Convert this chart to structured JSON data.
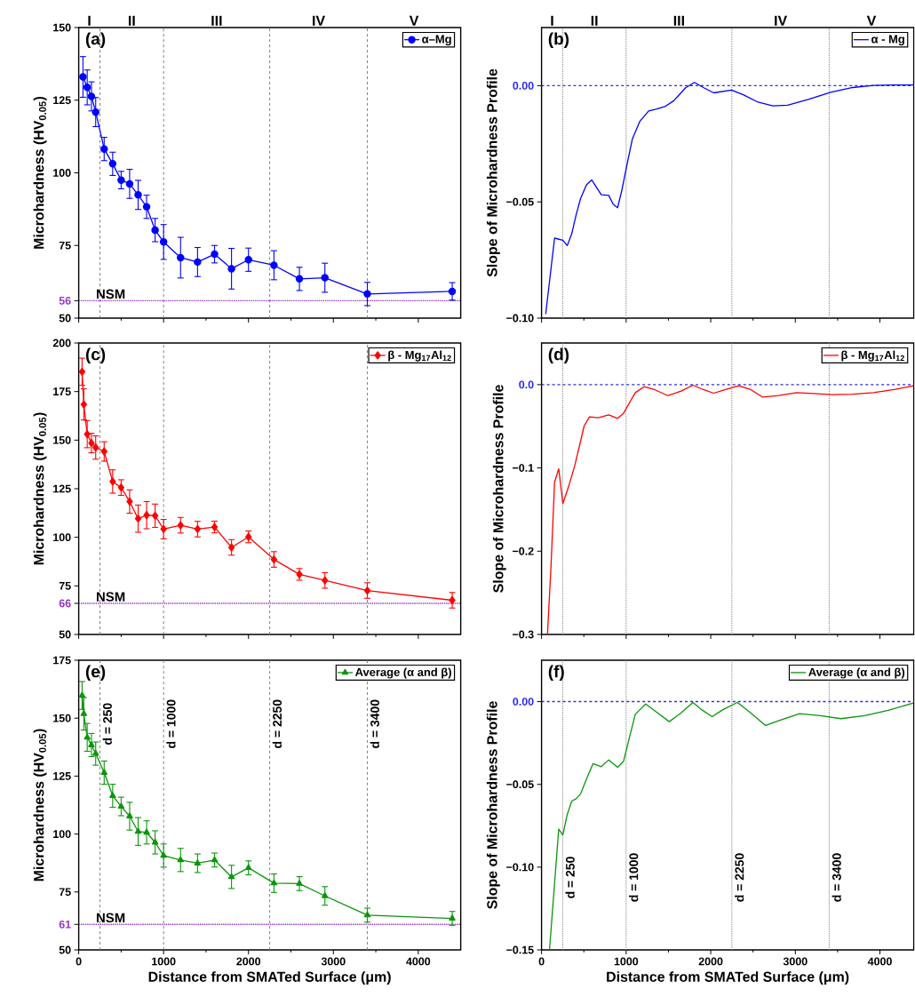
{
  "chart_data": [
    {
      "type": "line",
      "ylabel": "Microhardness (HV$_{0.05}$)",
      "annotations": [
        "(a)",
        "I",
        "II",
        "III",
        "IV",
        "V"
      ],
      "x": [
        50,
        100,
        150,
        200,
        300,
        400,
        500,
        600,
        700,
        800,
        900,
        1000,
        1200,
        1400,
        1600,
        1800,
        2000,
        2300,
        2600,
        2900,
        3400,
        4400
      ],
      "series": [
        {
          "name": "α–Mg",
          "color": "#0000ff",
          "values": [
            133,
            129.4,
            126.3,
            120.9,
            108.2,
            103.1,
            97.5,
            96.2,
            92.4,
            88.3,
            80.3,
            76.2,
            70.8,
            69.3,
            72,
            67,
            70.1,
            68.2,
            63.5,
            63.9,
            58.3,
            59.2
          ],
          "errors": [
            7,
            6,
            5,
            5,
            4,
            4,
            3,
            5,
            5,
            4,
            4,
            6,
            7,
            5,
            3,
            7,
            4,
            5,
            4,
            5,
            4,
            3
          ]
        }
      ],
      "xlim": [
        0,
        4500
      ],
      "xticks": [
        0,
        1000,
        2000,
        3000,
        4000
      ],
      "ylim": [
        50,
        150
      ],
      "yticks": [
        50,
        56,
        75,
        100,
        125,
        150
      ],
      "ref_lines": [
        {
          "axis": "x",
          "value": 250,
          "color": "#808080",
          "line_style": "dashed"
        },
        {
          "axis": "x",
          "value": 1000,
          "color": "#808080",
          "line_style": "dashed"
        },
        {
          "axis": "x",
          "value": 2250,
          "color": "#808080",
          "line_style": "dashed"
        },
        {
          "axis": "x",
          "value": 3400,
          "color": "#808080",
          "line_style": "dashed"
        },
        {
          "axis": "y",
          "value": 56,
          "label": "NSM",
          "color": "#9932cc",
          "line_style": "dotted"
        }
      ],
      "marker": "circle",
      "legend": "top right",
      "tick_labels": "y"
    },
    {
      "type": "line",
      "ylabel": "Slope of Microhardness Profile",
      "annotations": [
        "(b)",
        "I",
        "II",
        "III",
        "IV",
        "V"
      ],
      "x": [
        49,
        154,
        252,
        304,
        357,
        409,
        462,
        531,
        594,
        706,
        794,
        846,
        899,
        951,
        1007,
        1073,
        1161,
        1266,
        1353,
        1458,
        1563,
        1703,
        1808,
        1913,
        2035,
        2245,
        2385,
        2559,
        2734,
        2909,
        3154,
        3416,
        3678,
        3923,
        4168,
        4395
      ],
      "series": [
        {
          "name": "α - Mg",
          "color": "#0000ff",
          "values": [
            -0.0983,
            -0.0656,
            -0.0665,
            -0.0688,
            -0.0637,
            -0.0555,
            -0.0485,
            -0.0427,
            -0.0406,
            -0.0469,
            -0.0472,
            -0.051,
            -0.0525,
            -0.0447,
            -0.0345,
            -0.023,
            -0.0154,
            -0.0109,
            -0.0101,
            -0.009,
            -0.0065,
            -0.0009,
            0.0014,
            -0.0008,
            -0.0031,
            -0.0019,
            -0.0039,
            -0.0071,
            -0.0087,
            -0.0084,
            -0.0059,
            -0.0029,
            -0.0008,
            0.0001,
            0.0003,
            0.0003
          ]
        }
      ],
      "xlim": [
        0,
        4400
      ],
      "xticks": [
        0,
        1000,
        2000,
        3000,
        4000
      ],
      "ylim": [
        -0.1,
        0.025
      ],
      "yticks": [
        {
          "value": -0.1,
          "label": "−0.10"
        },
        {
          "value": -0.05,
          "label": "−0.05"
        },
        {
          "value": 0,
          "label": "0.00"
        }
      ],
      "ref_lines": [
        {
          "axis": "x",
          "value": 250,
          "color": "#808080",
          "line_style": "dotted"
        },
        {
          "axis": "x",
          "value": 1000,
          "color": "#808080",
          "line_style": "dotted"
        },
        {
          "axis": "x",
          "value": 2250,
          "color": "#808080",
          "line_style": "dotted"
        },
        {
          "axis": "x",
          "value": 3400,
          "color": "#808080",
          "line_style": "dotted"
        },
        {
          "axis": "y",
          "value": 0,
          "color": "#2a2aee",
          "line_style": "dashed"
        }
      ],
      "legend": "top right",
      "tick_labels": "y"
    },
    {
      "type": "line",
      "ylabel": "Microhardness (HV$_{0.05}$)",
      "annotations": [
        "(c)"
      ],
      "x": [
        40,
        60,
        100,
        150,
        200,
        300,
        400,
        500,
        600,
        700,
        800,
        900,
        1000,
        1200,
        1400,
        1600,
        1800,
        2000,
        2300,
        2600,
        2900,
        3400,
        4400
      ],
      "series": [
        {
          "name": "β - Mg$_{17}$Al$_{12}$",
          "color": "#ff0000",
          "values": [
            185.2,
            168.4,
            153.1,
            148.5,
            146.2,
            144.2,
            128.7,
            125.6,
            118.4,
            109.6,
            111.4,
            111.1,
            104.2,
            106.2,
            104.2,
            105.3,
            94.8,
            100.2,
            88.6,
            80.9,
            77.8,
            72.6,
            67.6
          ],
          "errors": [
            7,
            8,
            7,
            5,
            6,
            5,
            6,
            4,
            6,
            7,
            7,
            6,
            5,
            4,
            4,
            3,
            4,
            3,
            4,
            3,
            4,
            4,
            4
          ]
        }
      ],
      "xlim": [
        0,
        4500
      ],
      "xticks": [
        0,
        1000,
        2000,
        3000,
        4000
      ],
      "ylim": [
        50,
        200
      ],
      "yticks": [
        50,
        66,
        75,
        100,
        125,
        150,
        175,
        200
      ],
      "ref_lines": [
        {
          "axis": "x",
          "value": 250,
          "color": "#808080",
          "line_style": "dashed"
        },
        {
          "axis": "x",
          "value": 1000,
          "color": "#808080",
          "line_style": "dashed"
        },
        {
          "axis": "x",
          "value": 2250,
          "color": "#808080",
          "line_style": "dashed"
        },
        {
          "axis": "x",
          "value": 3400,
          "color": "#808080",
          "line_style": "dashed"
        },
        {
          "axis": "y",
          "value": 66,
          "label": "NSM",
          "color": "#9932cc",
          "line_style": "dotted"
        }
      ],
      "marker": "diamond",
      "legend": "top right",
      "tick_labels": "y"
    },
    {
      "type": "line",
      "ylabel": "Slope of Microhardness Profile",
      "annotations": [
        "(d)"
      ],
      "x": [
        70,
        112,
        154,
        203,
        252,
        322,
        392,
        444,
        503,
        566,
        671,
        794,
        899,
        969,
        1038,
        1108,
        1213,
        1336,
        1493,
        1650,
        1790,
        1913,
        2035,
        2175,
        2332,
        2472,
        2612,
        2804,
        3014,
        3224,
        3434,
        3678,
        3923,
        4168,
        4395
      ],
      "series": [
        {
          "name": "β - Mg$_{17}$Al$_{12}$",
          "color": "#ff0000",
          "values": [
            -0.3,
            -0.2176,
            -0.1173,
            -0.101,
            -0.1429,
            -0.1216,
            -0.0974,
            -0.0754,
            -0.0498,
            -0.0387,
            -0.0398,
            -0.0363,
            -0.0405,
            -0.0345,
            -0.022,
            -0.0096,
            -0.0025,
            -0.006,
            -0.0132,
            -0.0078,
            -0.0007,
            -0.006,
            -0.0103,
            -0.006,
            -0.0014,
            -0.006,
            -0.0149,
            -0.0132,
            -0.0096,
            -0.0107,
            -0.0121,
            -0.0114,
            -0.0096,
            -0.006,
            -0.0014
          ]
        }
      ],
      "xlim": [
        0,
        4400
      ],
      "xticks": [
        0,
        1000,
        2000,
        3000,
        4000
      ],
      "ylim": [
        -0.3,
        0.05
      ],
      "yticks": [
        {
          "value": -0.3,
          "label": "−0.3"
        },
        {
          "value": -0.2,
          "label": "−0.2"
        },
        {
          "value": -0.1,
          "label": "−0.1"
        },
        {
          "value": 0,
          "label": "0.0"
        }
      ],
      "ref_lines": [
        {
          "axis": "x",
          "value": 250,
          "color": "#808080",
          "line_style": "dotted"
        },
        {
          "axis": "x",
          "value": 1000,
          "color": "#808080",
          "line_style": "dotted"
        },
        {
          "axis": "x",
          "value": 2250,
          "color": "#808080",
          "line_style": "dotted"
        },
        {
          "axis": "x",
          "value": 3400,
          "color": "#808080",
          "line_style": "dotted"
        },
        {
          "axis": "y",
          "value": 0,
          "color": "#2a2aee",
          "line_style": "dashed"
        }
      ],
      "legend": "top right",
      "tick_labels": "y"
    },
    {
      "type": "line",
      "xlabel": "Distance from SMATed Surface (μm)",
      "ylabel": "Microhardness (HV$_{0.05}$)",
      "annotations": [
        "(e)"
      ],
      "x": [
        40,
        60,
        100,
        150,
        200,
        300,
        400,
        500,
        600,
        700,
        800,
        900,
        1000,
        1200,
        1400,
        1600,
        1800,
        2000,
        2300,
        2600,
        2900,
        3400,
        4400
      ],
      "series": [
        {
          "name": "Average (α and β)",
          "color": "#0a960a",
          "values": [
            159.8,
            151.9,
            141.7,
            138.4,
            134.7,
            126.5,
            116.5,
            111.9,
            107.7,
            101.1,
            100.7,
            96.4,
            90.7,
            88.8,
            87.4,
            88.8,
            81.5,
            85.4,
            78.8,
            78.6,
            73.3,
            65,
            63.6
          ],
          "errors": [
            6,
            7,
            6,
            5,
            5,
            5,
            5,
            4,
            6,
            6,
            5,
            5,
            5,
            5,
            4,
            3,
            5,
            3,
            4,
            3,
            4,
            3,
            3
          ]
        }
      ],
      "xlim": [
        0,
        4500
      ],
      "xticks": [
        0,
        1000,
        2000,
        3000,
        4000
      ],
      "ylim": [
        50,
        175
      ],
      "yticks": [
        50,
        61,
        75,
        100,
        125,
        150,
        175
      ],
      "ref_lines": [
        {
          "axis": "x",
          "value": 250,
          "label": "d = 250",
          "color": "#808080",
          "line_style": "dashed"
        },
        {
          "axis": "x",
          "value": 1000,
          "label": "d = 1000",
          "color": "#808080",
          "line_style": "dashed"
        },
        {
          "axis": "x",
          "value": 2250,
          "label": "d = 2250",
          "color": "#808080",
          "line_style": "dashed"
        },
        {
          "axis": "x",
          "value": 3400,
          "label": "d = 3400",
          "color": "#808080",
          "line_style": "dashed"
        },
        {
          "axis": "y",
          "value": 61,
          "label": "NSM",
          "color": "#9932cc",
          "line_style": "dotted"
        }
      ],
      "marker": "triangle",
      "legend": "top right"
    },
    {
      "type": "line",
      "xlabel": "Distance from SMATed Surface (μm)",
      "ylabel": "Slope of Microhardness Profile",
      "annotations": [
        "(f)"
      ],
      "x": [
        94,
        147,
        203,
        252,
        304,
        357,
        409,
        462,
        531,
        608,
        706,
        794,
        899,
        969,
        1038,
        1108,
        1231,
        1371,
        1510,
        1650,
        1790,
        1895,
        2017,
        2140,
        2315,
        2472,
        2647,
        2839,
        3049,
        3294,
        3538,
        3818,
        4098,
        4395
      ],
      "series": [
        {
          "name": "Average (α and β)",
          "color": "#0a960a",
          "values": [
            -0.15,
            -0.1144,
            -0.077,
            -0.0806,
            -0.0681,
            -0.0601,
            -0.0587,
            -0.0557,
            -0.0468,
            -0.0375,
            -0.0393,
            -0.0352,
            -0.0397,
            -0.0361,
            -0.0219,
            -0.0077,
            -0.0014,
            -0.0068,
            -0.0121,
            -0.0068,
            -0.0005,
            -0.005,
            -0.0091,
            -0.005,
            -0.0005,
            -0.0068,
            -0.0144,
            -0.0109,
            -0.0073,
            -0.0085,
            -0.0103,
            -0.0085,
            -0.0053,
            -0.0009
          ]
        }
      ],
      "xlim": [
        0,
        4400
      ],
      "xticks": [
        0,
        1000,
        2000,
        3000,
        4000
      ],
      "ylim": [
        -0.15,
        0.025
      ],
      "yticks": [
        {
          "value": -0.15,
          "label": "−0.15"
        },
        {
          "value": -0.1,
          "label": "−0.10"
        },
        {
          "value": -0.05,
          "label": "−0.05"
        },
        {
          "value": 0,
          "label": "0.00"
        }
      ],
      "ref_lines": [
        {
          "axis": "x",
          "value": 250,
          "label": "d = 250",
          "color": "#808080",
          "line_style": "dotted"
        },
        {
          "axis": "x",
          "value": 1000,
          "label": "d = 1000",
          "color": "#808080",
          "line_style": "dotted"
        },
        {
          "axis": "x",
          "value": 2250,
          "label": "d = 2250",
          "color": "#808080",
          "line_style": "dotted"
        },
        {
          "axis": "x",
          "value": 3400,
          "label": "d = 3400",
          "color": "#808080",
          "line_style": "dotted"
        },
        {
          "axis": "y",
          "value": 0,
          "color": "#2a2aee",
          "line_style": "dashed"
        }
      ],
      "legend": "top right"
    }
  ]
}
